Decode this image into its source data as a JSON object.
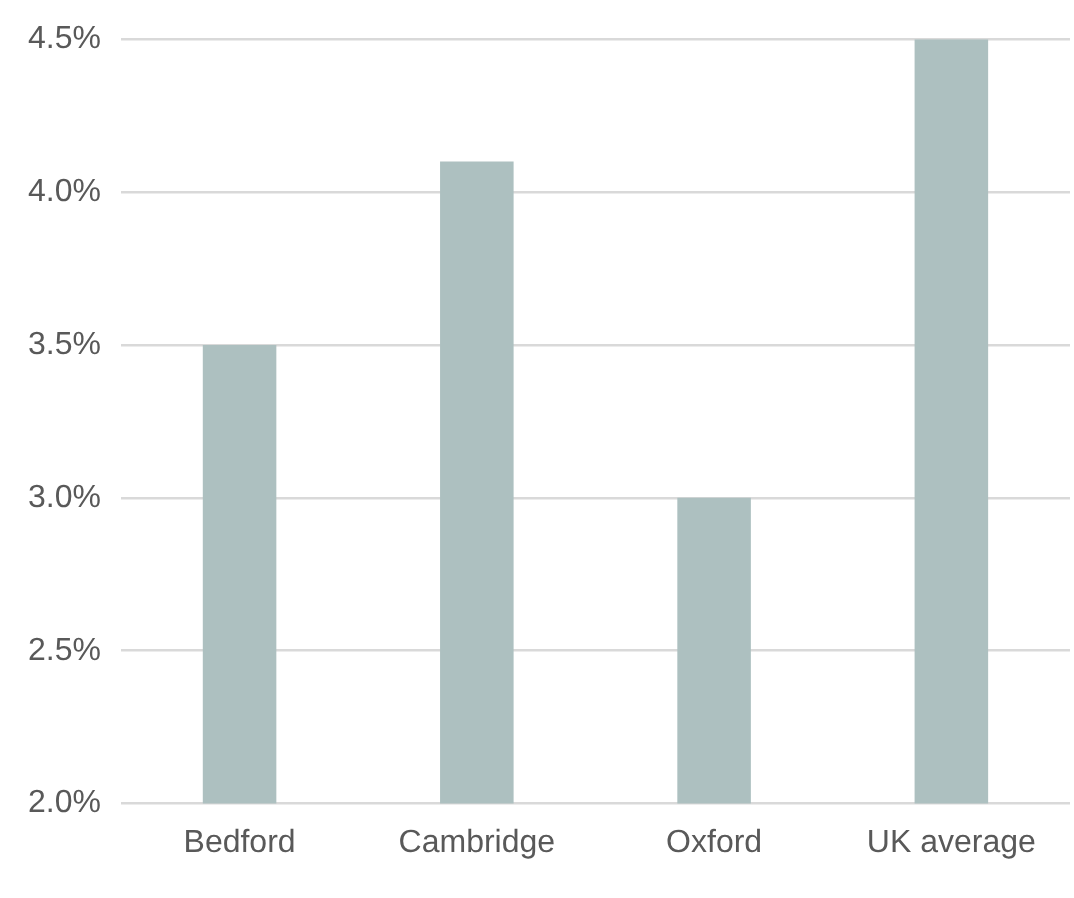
{
  "chart_data": {
    "type": "bar",
    "categories": [
      "Bedford",
      "Cambridge",
      "Oxford",
      "UK average"
    ],
    "values": [
      3.5,
      4.1,
      3.0,
      4.5
    ],
    "color": "#adc0c0",
    "ylim": [
      2,
      4.5
    ],
    "yticks": [
      {
        "value": 2,
        "label": "2.0%"
      },
      {
        "value": 2.5,
        "label": "2.5%"
      },
      {
        "value": 3,
        "label": "3.0%"
      },
      {
        "value": 3.5,
        "label": "3.5%"
      },
      {
        "value": 4,
        "label": "4.0%"
      },
      {
        "value": 4.5,
        "label": "4.5%"
      }
    ],
    "grid": "y",
    "legend": false
  }
}
